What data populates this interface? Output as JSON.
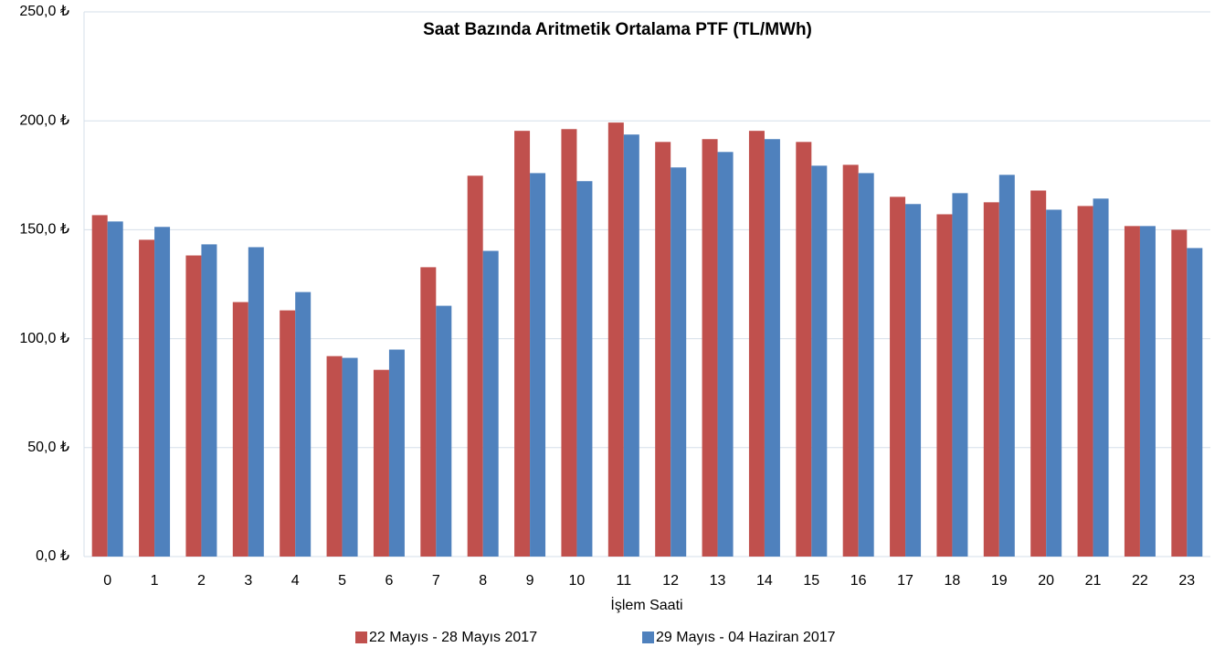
{
  "chart_data": {
    "type": "bar",
    "title": "Saat Bazında Aritmetik Ortalama PTF (TL/MWh)",
    "x_label": "İşlem Saati",
    "categories": [
      "0",
      "1",
      "2",
      "3",
      "4",
      "5",
      "6",
      "7",
      "8",
      "9",
      "10",
      "11",
      "12",
      "13",
      "14",
      "15",
      "16",
      "17",
      "18",
      "19",
      "20",
      "21",
      "22",
      "23"
    ],
    "series": [
      {
        "name": "22 Mayıs - 28 Mayıs 2017",
        "color": "#c0504d",
        "values": [
          156.7,
          145.4,
          138.2,
          116.8,
          113,
          92,
          85.7,
          132.8,
          174.8,
          195.4,
          196.2,
          199.2,
          190.3,
          191.6,
          195.4,
          190.3,
          179.8,
          165.1,
          157.1,
          162.6,
          168,
          160.9,
          151.7,
          150
        ]
      },
      {
        "name": "29 Mayıs - 04 Haziran 2017",
        "color": "#4f81bd",
        "values": [
          153.8,
          151.3,
          143.3,
          142,
          121.4,
          91.2,
          95,
          115.1,
          140.3,
          176,
          172.3,
          193.7,
          178.6,
          185.7,
          191.6,
          179.4,
          176,
          161.8,
          166.8,
          175.2,
          159.2,
          164.3,
          151.7,
          141.6
        ]
      }
    ],
    "ylim": [
      0,
      250
    ],
    "yticks": [
      {
        "value": 0,
        "label": "0,0 ₺"
      },
      {
        "value": 50,
        "label": "50,0 ₺"
      },
      {
        "value": 100,
        "label": "100,0 ₺"
      },
      {
        "value": 150,
        "label": "150,0 ₺"
      },
      {
        "value": 200,
        "label": "200,0 ₺"
      },
      {
        "value": 250,
        "label": "250,0 ₺"
      }
    ],
    "grid": true
  }
}
